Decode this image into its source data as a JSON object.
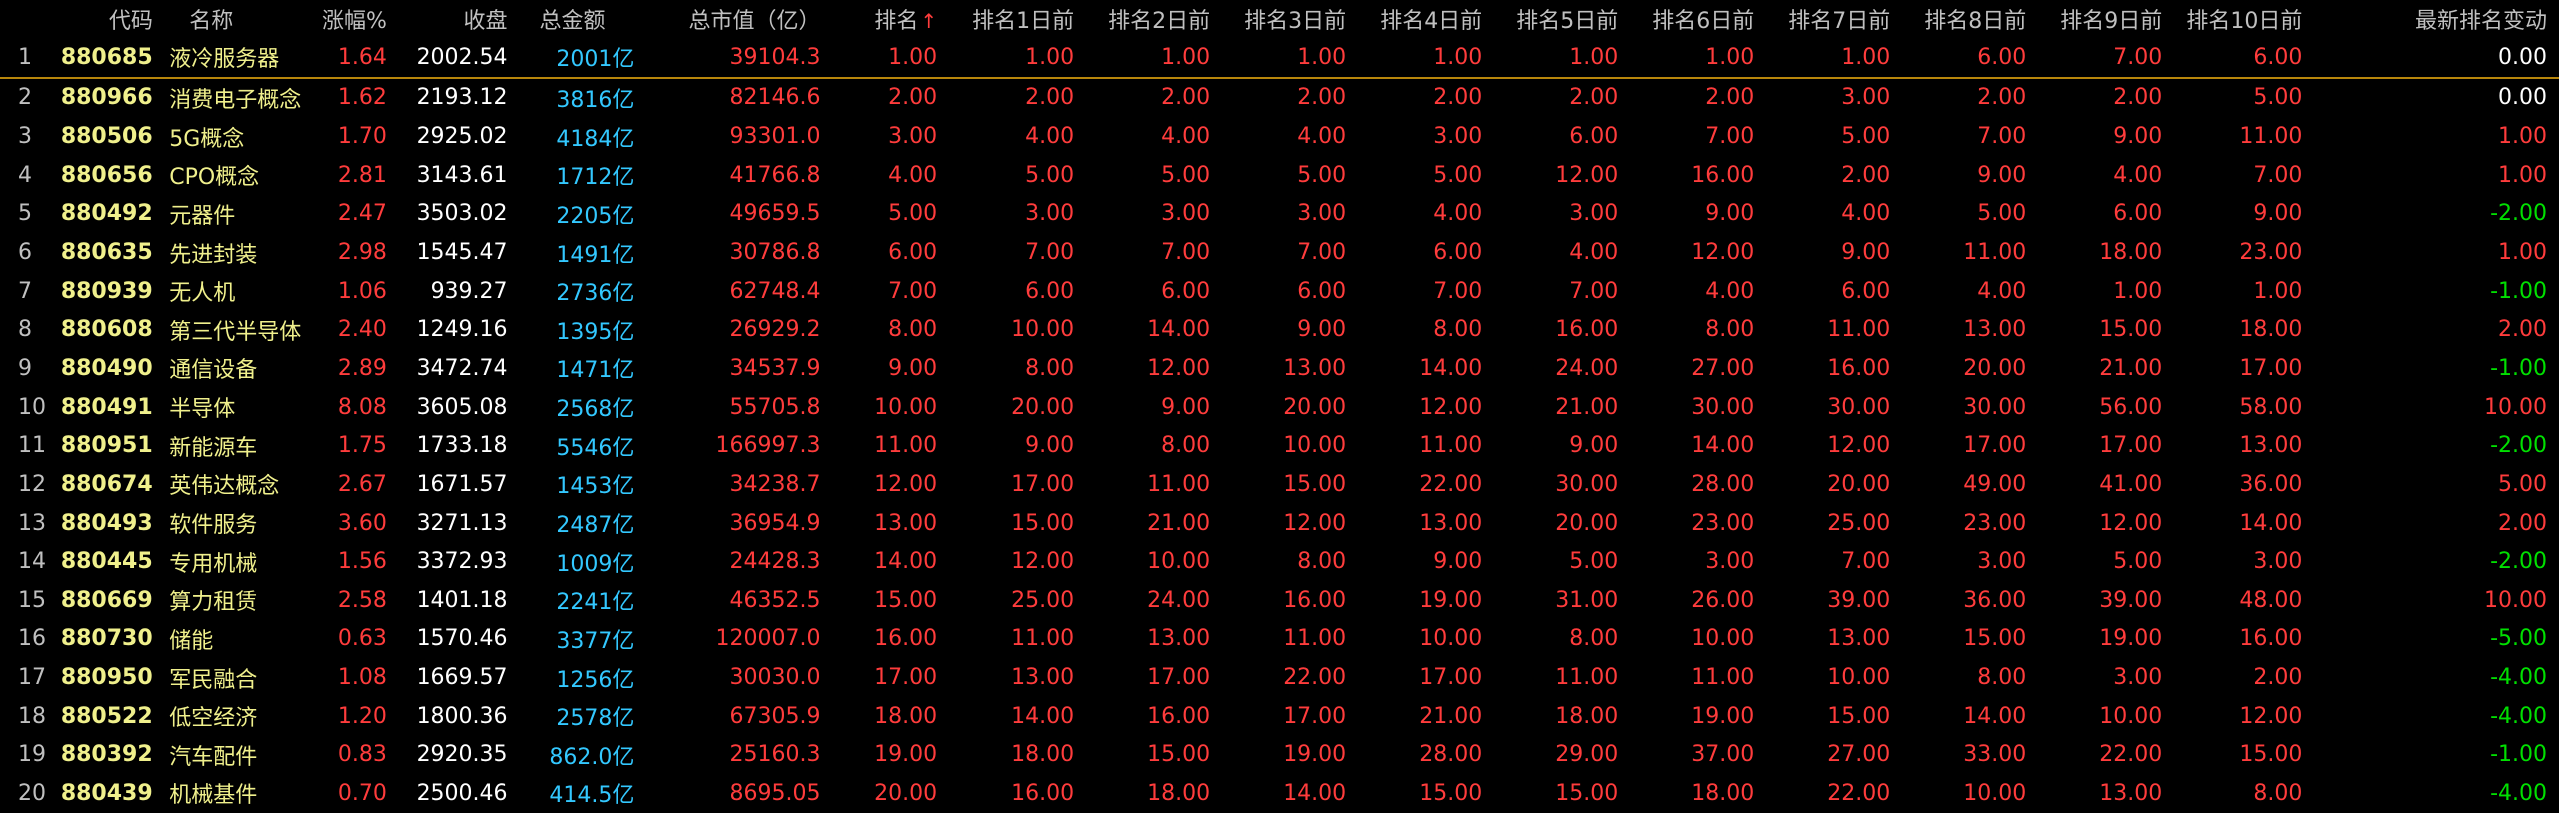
{
  "colors": {
    "background": "#000000",
    "header_text": "#C0C0C0",
    "code_text": "#F0F08C",
    "up_red": "#FF3C3C",
    "amount_cyan": "#33C8FF",
    "down_green": "#00E000",
    "selection_line": "#B8860B"
  },
  "header": {
    "code": "代码",
    "name": "名称",
    "pct": "涨幅%",
    "close": "收盘",
    "amount": "总金额",
    "market_cap": "总市值（亿）",
    "rank": "排名",
    "rank_sort_icon": "sort-up-arrow",
    "rank_sort_glyph": "↑",
    "r1": "排名1日前",
    "r2": "排名2日前",
    "r3": "排名3日前",
    "r4": "排名4日前",
    "r5": "排名5日前",
    "r6": "排名6日前",
    "r7": "排名7日前",
    "r8": "排名8日前",
    "r9": "排名9日前",
    "r10": "排名10日前",
    "change": "最新排名变动"
  },
  "rows": [
    {
      "idx": "1",
      "code": "880685",
      "name": "液冷服务器",
      "pct": "1.64",
      "close": "2002.54",
      "amount": "2001",
      "unit": "亿",
      "cap": "39104.3",
      "rank": "1.00",
      "r1": "1.00",
      "r2": "1.00",
      "r3": "1.00",
      "r4": "1.00",
      "r5": "1.00",
      "r6": "1.00",
      "r7": "1.00",
      "r8": "6.00",
      "r9": "7.00",
      "r10": "6.00",
      "change": "0.00",
      "dir": "zero"
    },
    {
      "idx": "2",
      "code": "880966",
      "name": "消费电子概念",
      "pct": "1.62",
      "close": "2193.12",
      "amount": "3816",
      "unit": "亿",
      "cap": "82146.6",
      "rank": "2.00",
      "r1": "2.00",
      "r2": "2.00",
      "r3": "2.00",
      "r4": "2.00",
      "r5": "2.00",
      "r6": "2.00",
      "r7": "3.00",
      "r8": "2.00",
      "r9": "2.00",
      "r10": "5.00",
      "change": "0.00",
      "dir": "zero"
    },
    {
      "idx": "3",
      "code": "880506",
      "name": "5G概念",
      "pct": "1.70",
      "close": "2925.02",
      "amount": "4184",
      "unit": "亿",
      "cap": "93301.0",
      "rank": "3.00",
      "r1": "4.00",
      "r2": "4.00",
      "r3": "4.00",
      "r4": "3.00",
      "r5": "6.00",
      "r6": "7.00",
      "r7": "5.00",
      "r8": "7.00",
      "r9": "9.00",
      "r10": "11.00",
      "change": "1.00",
      "dir": "pos"
    },
    {
      "idx": "4",
      "code": "880656",
      "name": "CPO概念",
      "pct": "2.81",
      "close": "3143.61",
      "amount": "1712",
      "unit": "亿",
      "cap": "41766.8",
      "rank": "4.00",
      "r1": "5.00",
      "r2": "5.00",
      "r3": "5.00",
      "r4": "5.00",
      "r5": "12.00",
      "r6": "16.00",
      "r7": "2.00",
      "r8": "9.00",
      "r9": "4.00",
      "r10": "7.00",
      "change": "1.00",
      "dir": "pos"
    },
    {
      "idx": "5",
      "code": "880492",
      "name": "元器件",
      "pct": "2.47",
      "close": "3503.02",
      "amount": "2205",
      "unit": "亿",
      "cap": "49659.5",
      "rank": "5.00",
      "r1": "3.00",
      "r2": "3.00",
      "r3": "3.00",
      "r4": "4.00",
      "r5": "3.00",
      "r6": "9.00",
      "r7": "4.00",
      "r8": "5.00",
      "r9": "6.00",
      "r10": "9.00",
      "change": "-2.00",
      "dir": "neg"
    },
    {
      "idx": "6",
      "code": "880635",
      "name": "先进封装",
      "pct": "2.98",
      "close": "1545.47",
      "amount": "1491",
      "unit": "亿",
      "cap": "30786.8",
      "rank": "6.00",
      "r1": "7.00",
      "r2": "7.00",
      "r3": "7.00",
      "r4": "6.00",
      "r5": "4.00",
      "r6": "12.00",
      "r7": "9.00",
      "r8": "11.00",
      "r9": "18.00",
      "r10": "23.00",
      "change": "1.00",
      "dir": "pos"
    },
    {
      "idx": "7",
      "code": "880939",
      "name": "无人机",
      "pct": "1.06",
      "close": "939.27",
      "amount": "2736",
      "unit": "亿",
      "cap": "62748.4",
      "rank": "7.00",
      "r1": "6.00",
      "r2": "6.00",
      "r3": "6.00",
      "r4": "7.00",
      "r5": "7.00",
      "r6": "4.00",
      "r7": "6.00",
      "r8": "4.00",
      "r9": "1.00",
      "r10": "1.00",
      "change": "-1.00",
      "dir": "neg"
    },
    {
      "idx": "8",
      "code": "880608",
      "name": "第三代半导体",
      "pct": "2.40",
      "close": "1249.16",
      "amount": "1395",
      "unit": "亿",
      "cap": "26929.2",
      "rank": "8.00",
      "r1": "10.00",
      "r2": "14.00",
      "r3": "9.00",
      "r4": "8.00",
      "r5": "16.00",
      "r6": "8.00",
      "r7": "11.00",
      "r8": "13.00",
      "r9": "15.00",
      "r10": "18.00",
      "change": "2.00",
      "dir": "pos"
    },
    {
      "idx": "9",
      "code": "880490",
      "name": "通信设备",
      "pct": "2.89",
      "close": "3472.74",
      "amount": "1471",
      "unit": "亿",
      "cap": "34537.9",
      "rank": "9.00",
      "r1": "8.00",
      "r2": "12.00",
      "r3": "13.00",
      "r4": "14.00",
      "r5": "24.00",
      "r6": "27.00",
      "r7": "16.00",
      "r8": "20.00",
      "r9": "21.00",
      "r10": "17.00",
      "change": "-1.00",
      "dir": "neg"
    },
    {
      "idx": "10",
      "code": "880491",
      "name": "半导体",
      "pct": "8.08",
      "close": "3605.08",
      "amount": "2568",
      "unit": "亿",
      "cap": "55705.8",
      "rank": "10.00",
      "r1": "20.00",
      "r2": "9.00",
      "r3": "20.00",
      "r4": "12.00",
      "r5": "21.00",
      "r6": "30.00",
      "r7": "30.00",
      "r8": "30.00",
      "r9": "56.00",
      "r10": "58.00",
      "change": "10.00",
      "dir": "pos"
    },
    {
      "idx": "11",
      "code": "880951",
      "name": "新能源车",
      "pct": "1.75",
      "close": "1733.18",
      "amount": "5546",
      "unit": "亿",
      "cap": "166997.3",
      "rank": "11.00",
      "r1": "9.00",
      "r2": "8.00",
      "r3": "10.00",
      "r4": "11.00",
      "r5": "9.00",
      "r6": "14.00",
      "r7": "12.00",
      "r8": "17.00",
      "r9": "17.00",
      "r10": "13.00",
      "change": "-2.00",
      "dir": "neg"
    },
    {
      "idx": "12",
      "code": "880674",
      "name": "英伟达概念",
      "pct": "2.67",
      "close": "1671.57",
      "amount": "1453",
      "unit": "亿",
      "cap": "34238.7",
      "rank": "12.00",
      "r1": "17.00",
      "r2": "11.00",
      "r3": "15.00",
      "r4": "22.00",
      "r5": "30.00",
      "r6": "28.00",
      "r7": "20.00",
      "r8": "49.00",
      "r9": "41.00",
      "r10": "36.00",
      "change": "5.00",
      "dir": "pos"
    },
    {
      "idx": "13",
      "code": "880493",
      "name": "软件服务",
      "pct": "3.60",
      "close": "3271.13",
      "amount": "2487",
      "unit": "亿",
      "cap": "36954.9",
      "rank": "13.00",
      "r1": "15.00",
      "r2": "21.00",
      "r3": "12.00",
      "r4": "13.00",
      "r5": "20.00",
      "r6": "23.00",
      "r7": "25.00",
      "r8": "23.00",
      "r9": "12.00",
      "r10": "14.00",
      "change": "2.00",
      "dir": "pos"
    },
    {
      "idx": "14",
      "code": "880445",
      "name": "专用机械",
      "pct": "1.56",
      "close": "3372.93",
      "amount": "1009",
      "unit": "亿",
      "cap": "24428.3",
      "rank": "14.00",
      "r1": "12.00",
      "r2": "10.00",
      "r3": "8.00",
      "r4": "9.00",
      "r5": "5.00",
      "r6": "3.00",
      "r7": "7.00",
      "r8": "3.00",
      "r9": "5.00",
      "r10": "3.00",
      "change": "-2.00",
      "dir": "neg"
    },
    {
      "idx": "15",
      "code": "880669",
      "name": "算力租赁",
      "pct": "2.58",
      "close": "1401.18",
      "amount": "2241",
      "unit": "亿",
      "cap": "46352.5",
      "rank": "15.00",
      "r1": "25.00",
      "r2": "24.00",
      "r3": "16.00",
      "r4": "19.00",
      "r5": "31.00",
      "r6": "26.00",
      "r7": "39.00",
      "r8": "36.00",
      "r9": "39.00",
      "r10": "48.00",
      "change": "10.00",
      "dir": "pos"
    },
    {
      "idx": "16",
      "code": "880730",
      "name": "储能",
      "pct": "0.63",
      "close": "1570.46",
      "amount": "3377",
      "unit": "亿",
      "cap": "120007.0",
      "rank": "16.00",
      "r1": "11.00",
      "r2": "13.00",
      "r3": "11.00",
      "r4": "10.00",
      "r5": "8.00",
      "r6": "10.00",
      "r7": "13.00",
      "r8": "15.00",
      "r9": "19.00",
      "r10": "16.00",
      "change": "-5.00",
      "dir": "neg"
    },
    {
      "idx": "17",
      "code": "880950",
      "name": "军民融合",
      "pct": "1.08",
      "close": "1669.57",
      "amount": "1256",
      "unit": "亿",
      "cap": "30030.0",
      "rank": "17.00",
      "r1": "13.00",
      "r2": "17.00",
      "r3": "22.00",
      "r4": "17.00",
      "r5": "11.00",
      "r6": "11.00",
      "r7": "10.00",
      "r8": "8.00",
      "r9": "3.00",
      "r10": "2.00",
      "change": "-4.00",
      "dir": "neg"
    },
    {
      "idx": "18",
      "code": "880522",
      "name": "低空经济",
      "pct": "1.20",
      "close": "1800.36",
      "amount": "2578",
      "unit": "亿",
      "cap": "67305.9",
      "rank": "18.00",
      "r1": "14.00",
      "r2": "16.00",
      "r3": "17.00",
      "r4": "21.00",
      "r5": "18.00",
      "r6": "19.00",
      "r7": "15.00",
      "r8": "14.00",
      "r9": "10.00",
      "r10": "12.00",
      "change": "-4.00",
      "dir": "neg"
    },
    {
      "idx": "19",
      "code": "880392",
      "name": "汽车配件",
      "pct": "0.83",
      "close": "2920.35",
      "amount": "862.0",
      "unit": "亿",
      "cap": "25160.3",
      "rank": "19.00",
      "r1": "18.00",
      "r2": "15.00",
      "r3": "19.00",
      "r4": "28.00",
      "r5": "29.00",
      "r6": "37.00",
      "r7": "27.00",
      "r8": "33.00",
      "r9": "22.00",
      "r10": "15.00",
      "change": "-1.00",
      "dir": "neg"
    },
    {
      "idx": "20",
      "code": "880439",
      "name": "机械基件",
      "pct": "0.70",
      "close": "2500.46",
      "amount": "414.5",
      "unit": "亿",
      "cap": "8695.05",
      "rank": "20.00",
      "r1": "16.00",
      "r2": "18.00",
      "r3": "14.00",
      "r4": "15.00",
      "r5": "15.00",
      "r6": "18.00",
      "r7": "22.00",
      "r8": "10.00",
      "r9": "13.00",
      "r10": "8.00",
      "change": "-4.00",
      "dir": "neg"
    }
  ]
}
